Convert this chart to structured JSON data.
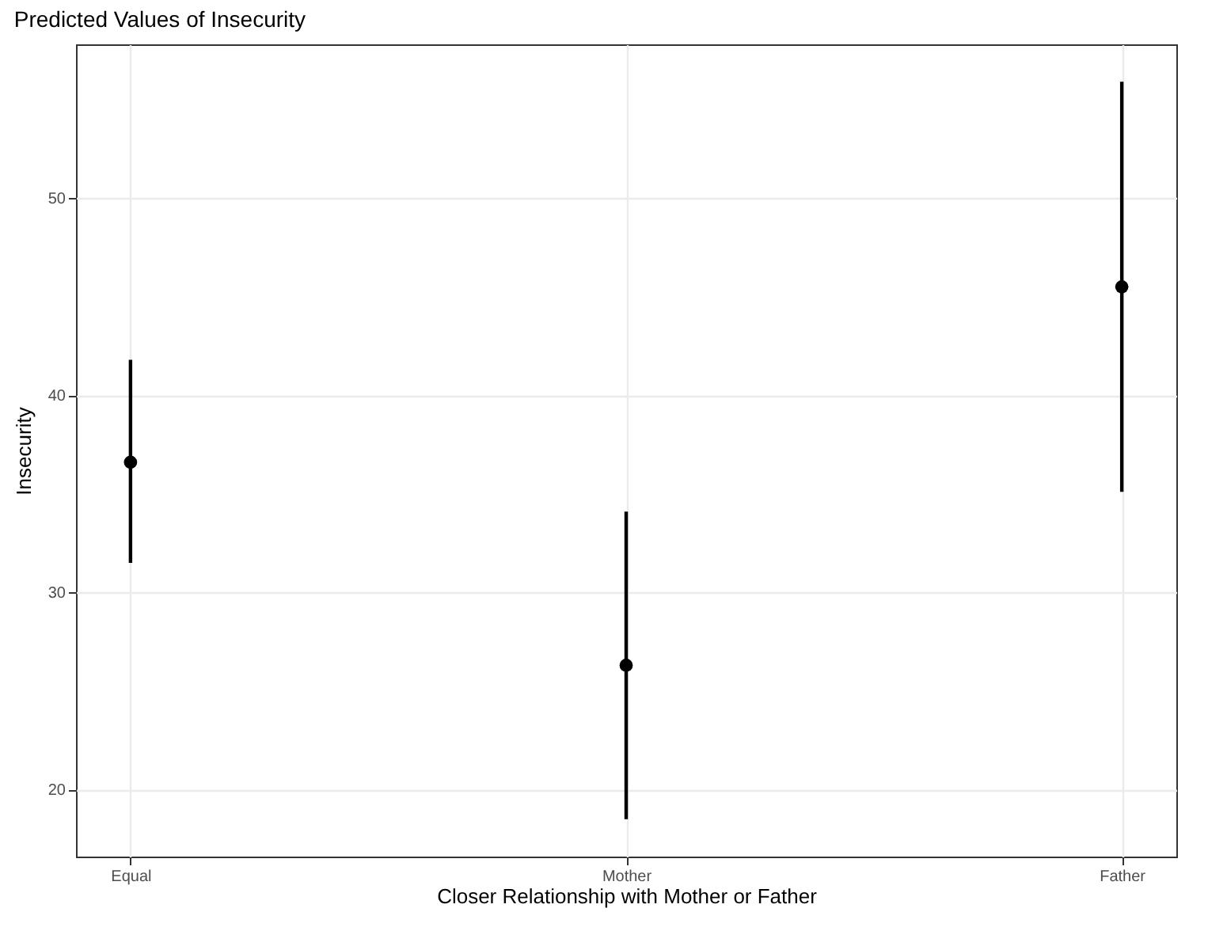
{
  "chart_data": {
    "type": "scatter",
    "title": "Predicted Values of Insecurity",
    "xlabel": "Closer Relationship with Mother or Father",
    "ylabel": "Insecurity",
    "categories": [
      "Equal",
      "Mother",
      "Father"
    ],
    "series": [
      {
        "color": "#000000",
        "values": [
          36.6,
          26.3,
          45.5
        ],
        "errors": [
          [
            31.5,
            41.8
          ],
          [
            18.5,
            34.1
          ],
          [
            35.1,
            55.9
          ]
        ]
      }
    ],
    "ylim": [
      16.6,
      57.8
    ],
    "yticks": [
      20,
      30,
      40,
      50
    ],
    "grid": true,
    "marker": "circle"
  }
}
